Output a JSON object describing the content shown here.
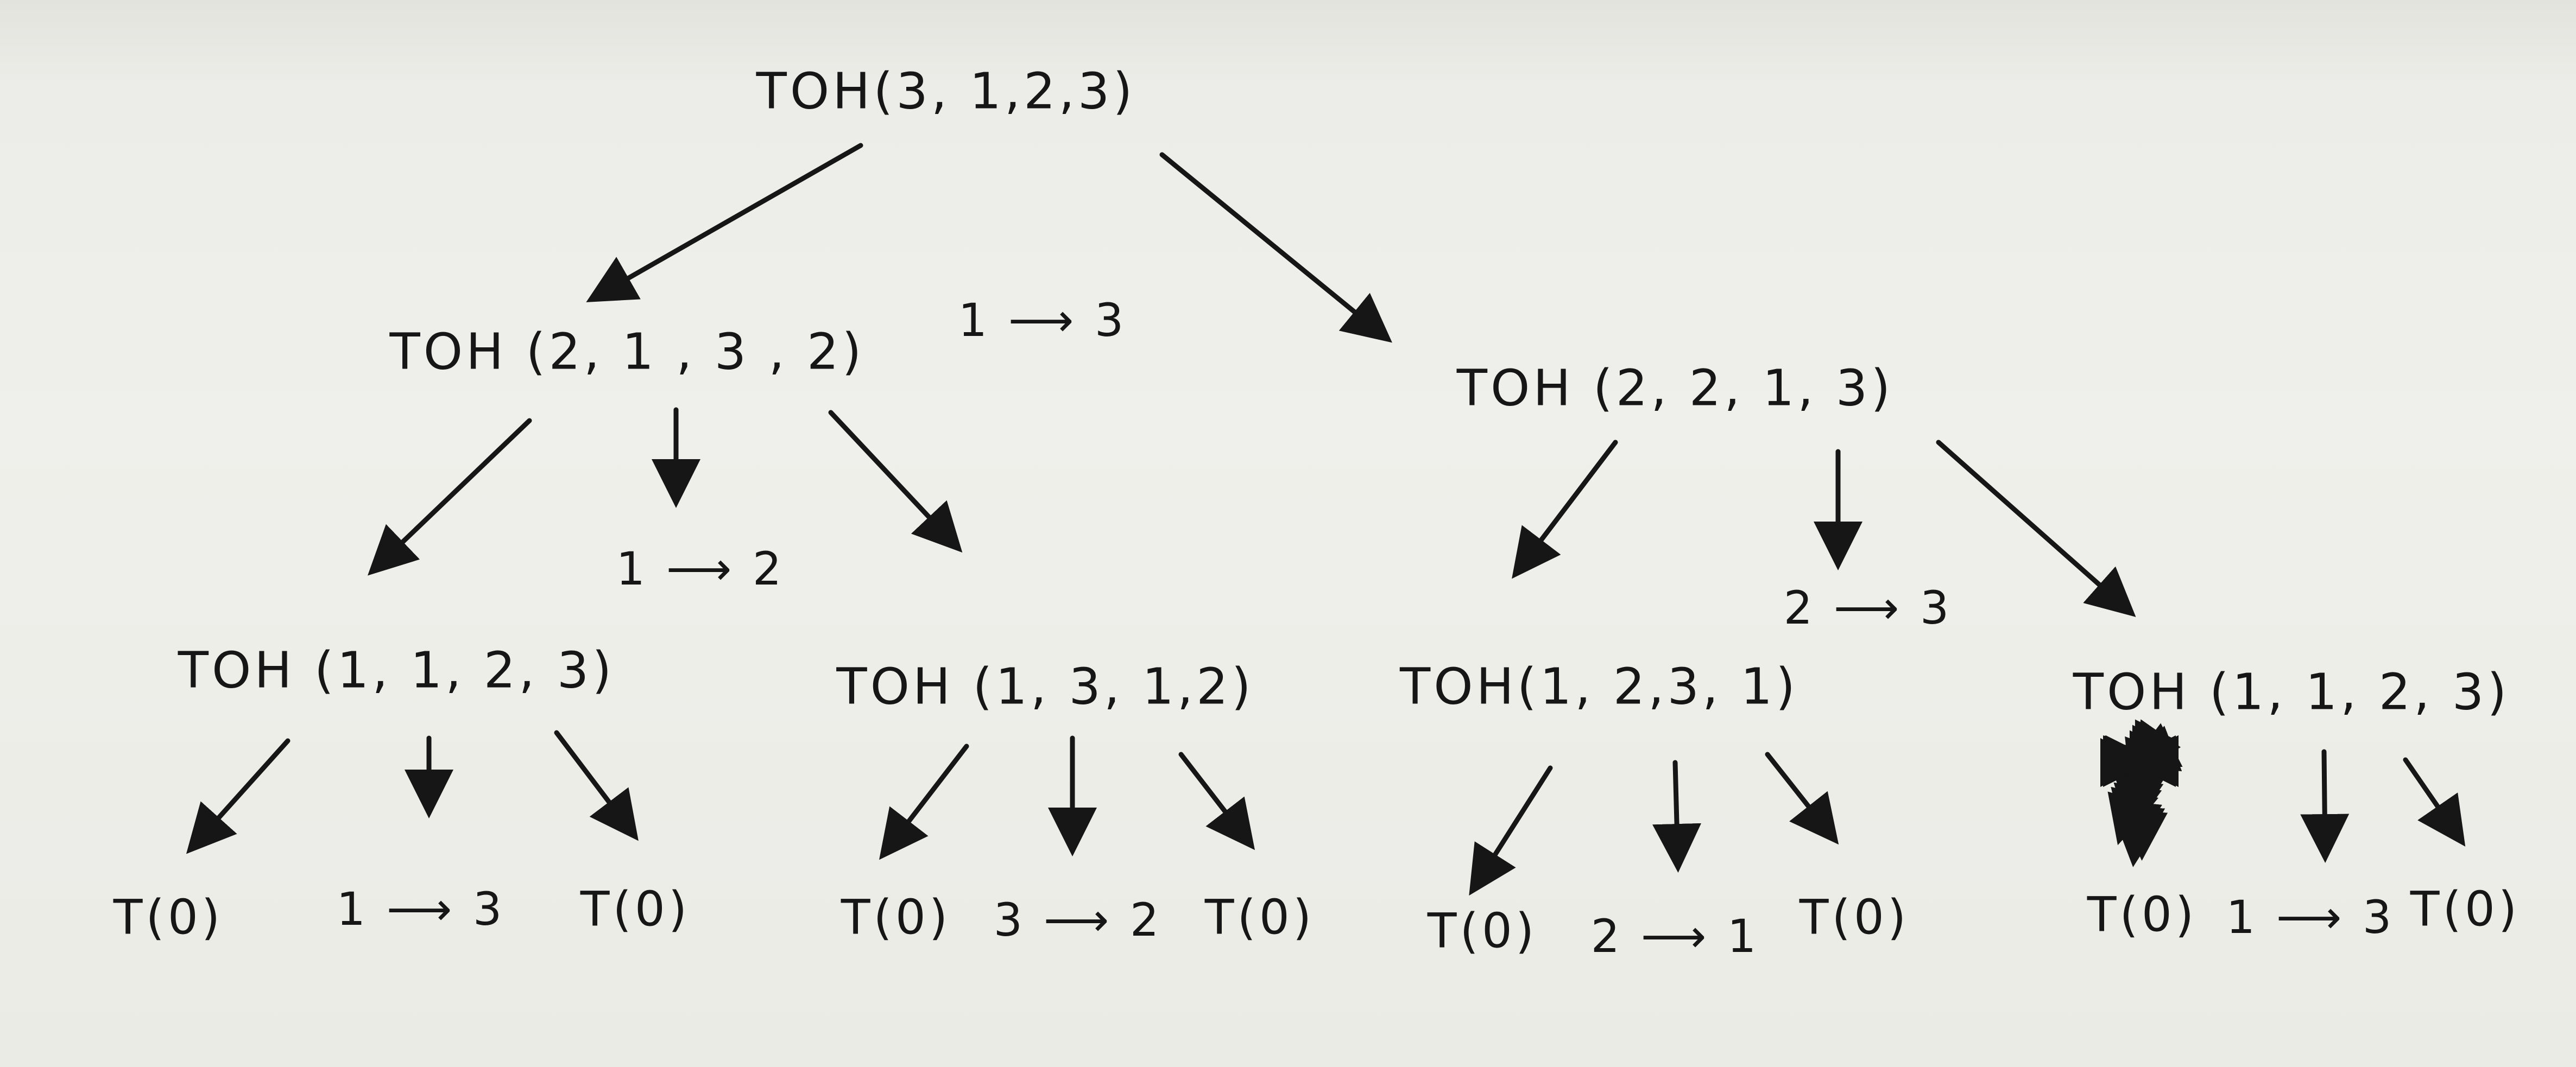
{
  "nodes": {
    "root": "TOH(3, 1,2,3)",
    "l": "TOH (2, 1 , 3 , 2)",
    "r": "TOH (2, 2, 1, 3)",
    "ll": "TOH (1, 1, 2, 3)",
    "lr": "TOH (1, 3, 1,2)",
    "rl": "TOH(1, 2,3, 1)",
    "rr": "TOH (1, 1, 2, 3)"
  },
  "moves": {
    "root": "1 ⟶ 3",
    "l": "1 ⟶ 2",
    "r": "2 ⟶ 3",
    "ll": "1 ⟶ 3",
    "lr": "3 ⟶ 2",
    "rl": "2 ⟶ 1",
    "rr": "1 ⟶ 3"
  },
  "leaves": {
    "ll_a": "T(0)",
    "ll_b": "T(0)",
    "lr_a": "T(0)",
    "lr_b": "T(0)",
    "rl_a": "T(0)",
    "rl_b": "T(0)",
    "rr_a": "T(0)",
    "rr_b": "T(0)"
  },
  "colors": {
    "ink": "#161616",
    "paper": "#eeeeea"
  }
}
